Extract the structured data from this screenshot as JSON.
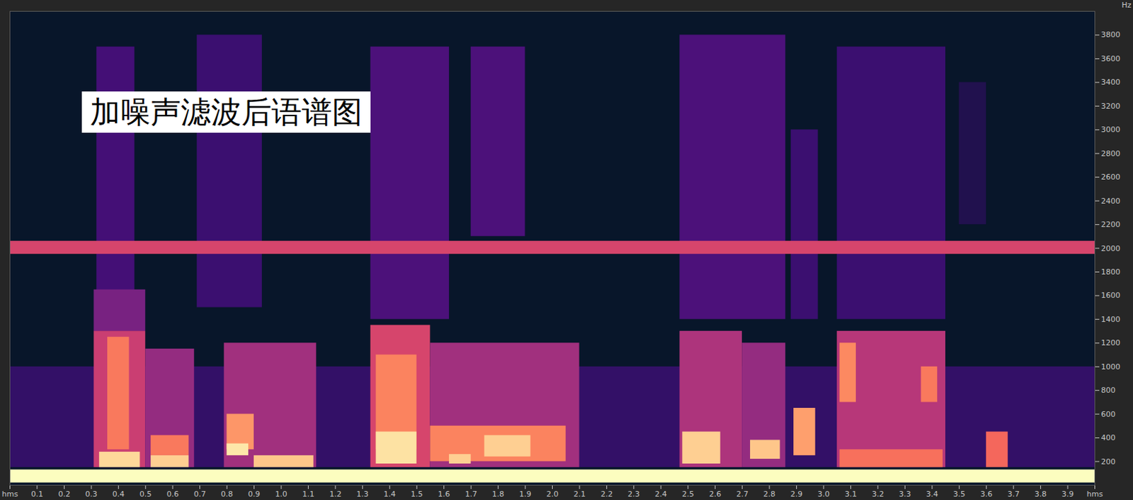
{
  "chart_data": {
    "type": "spectrogram",
    "title": "加噪声滤波后语谱图",
    "y_label": "Hz",
    "xlim": [
      0,
      4.0
    ],
    "xticks": [
      {
        "value": 0,
        "label": "hms"
      },
      0.1,
      0.2,
      0.3,
      0.4,
      0.5,
      0.6,
      0.7,
      0.8,
      0.9,
      {
        "value": 1,
        "label": "1.0"
      },
      1.1,
      1.2,
      1.3,
      1.4,
      1.5,
      1.6,
      1.7,
      1.8,
      1.9,
      {
        "value": 2,
        "label": "2.0"
      },
      2.1,
      2.2,
      2.3,
      2.4,
      2.5,
      2.6,
      2.7,
      2.8,
      2.9,
      {
        "value": 3,
        "label": "3.0"
      },
      3.1,
      3.2,
      3.3,
      3.4,
      3.5,
      3.6,
      3.7,
      3.8,
      3.9,
      {
        "value": 4.0,
        "label": "hms"
      }
    ],
    "ylim": [
      0,
      4000
    ],
    "yticks": [
      200,
      400,
      600,
      800,
      1000,
      1200,
      1400,
      1600,
      1800,
      2000,
      2200,
      2400,
      2600,
      2800,
      3000,
      3200,
      3400,
      3600,
      3800
    ],
    "value_range": [
      0,
      100
    ],
    "cells": [
      {
        "t0": 0,
        "t1": 4.0,
        "f0": 150,
        "f1": 1000,
        "value": 18
      },
      {
        "t0": 0.32,
        "t1": 0.46,
        "f0": 1400,
        "f1": 3700,
        "value": 22
      },
      {
        "t0": 0.69,
        "t1": 0.93,
        "f0": 1500,
        "f1": 3800,
        "value": 20
      },
      {
        "t0": 1.33,
        "t1": 1.62,
        "f0": 1400,
        "f1": 3700,
        "value": 24
      },
      {
        "t0": 1.7,
        "t1": 1.9,
        "f0": 2100,
        "f1": 3700,
        "value": 24
      },
      {
        "t0": 2.47,
        "t1": 2.86,
        "f0": 1400,
        "f1": 3800,
        "value": 24
      },
      {
        "t0": 2.88,
        "t1": 2.98,
        "f0": 1400,
        "f1": 3000,
        "value": 20
      },
      {
        "t0": 3.05,
        "t1": 3.45,
        "f0": 1400,
        "f1": 3700,
        "value": 20
      },
      {
        "t0": 3.5,
        "t1": 3.6,
        "f0": 2200,
        "f1": 3400,
        "value": 14
      },
      {
        "t0": 0.31,
        "t1": 0.5,
        "f0": 150,
        "f1": 1300,
        "value": 55
      },
      {
        "t0": 0.31,
        "t1": 0.5,
        "f0": 1300,
        "f1": 1650,
        "value": 35
      },
      {
        "t0": 0.36,
        "t1": 0.44,
        "f0": 300,
        "f1": 1250,
        "value": 72
      },
      {
        "t0": 0.33,
        "t1": 0.48,
        "f0": 150,
        "f1": 280,
        "value": 92
      },
      {
        "t0": 0.5,
        "t1": 0.68,
        "f0": 150,
        "f1": 1150,
        "value": 42
      },
      {
        "t0": 0.52,
        "t1": 0.66,
        "f0": 250,
        "f1": 420,
        "value": 72
      },
      {
        "t0": 0.52,
        "t1": 0.66,
        "f0": 150,
        "f1": 250,
        "value": 90
      },
      {
        "t0": 0.79,
        "t1": 1.13,
        "f0": 150,
        "f1": 1200,
        "value": 45
      },
      {
        "t0": 0.8,
        "t1": 0.9,
        "f0": 300,
        "f1": 600,
        "value": 78
      },
      {
        "t0": 0.8,
        "t1": 0.88,
        "f0": 250,
        "f1": 350,
        "value": 95
      },
      {
        "t0": 0.9,
        "t1": 1.12,
        "f0": 150,
        "f1": 250,
        "value": 88
      },
      {
        "t0": 1.33,
        "t1": 1.55,
        "f0": 150,
        "f1": 1350,
        "value": 58
      },
      {
        "t0": 1.35,
        "t1": 1.5,
        "f0": 300,
        "f1": 1100,
        "value": 74
      },
      {
        "t0": 1.35,
        "t1": 1.5,
        "f0": 180,
        "f1": 450,
        "value": 94
      },
      {
        "t0": 1.55,
        "t1": 2.1,
        "f0": 150,
        "f1": 1200,
        "value": 45
      },
      {
        "t0": 1.55,
        "t1": 2.05,
        "f0": 200,
        "f1": 500,
        "value": 74
      },
      {
        "t0": 1.62,
        "t1": 1.7,
        "f0": 180,
        "f1": 260,
        "value": 90
      },
      {
        "t0": 1.75,
        "t1": 1.92,
        "f0": 240,
        "f1": 420,
        "value": 90
      },
      {
        "t0": 2.47,
        "t1": 2.7,
        "f0": 150,
        "f1": 1300,
        "value": 48
      },
      {
        "t0": 2.48,
        "t1": 2.62,
        "f0": 180,
        "f1": 450,
        "value": 90
      },
      {
        "t0": 2.7,
        "t1": 2.86,
        "f0": 150,
        "f1": 1200,
        "value": 42
      },
      {
        "t0": 2.73,
        "t1": 2.84,
        "f0": 220,
        "f1": 380,
        "value": 88
      },
      {
        "t0": 2.89,
        "t1": 2.97,
        "f0": 250,
        "f1": 650,
        "value": 80
      },
      {
        "t0": 3.05,
        "t1": 3.45,
        "f0": 150,
        "f1": 1300,
        "value": 50
      },
      {
        "t0": 3.06,
        "t1": 3.12,
        "f0": 700,
        "f1": 1200,
        "value": 75
      },
      {
        "t0": 3.36,
        "t1": 3.42,
        "f0": 700,
        "f1": 1000,
        "value": 72
      },
      {
        "t0": 3.06,
        "t1": 3.44,
        "f0": 150,
        "f1": 300,
        "value": 70
      },
      {
        "t0": 3.6,
        "t1": 3.68,
        "f0": 150,
        "f1": 450,
        "value": 68
      },
      {
        "t0": 0,
        "t1": 4.0,
        "f0": 1950,
        "f1": 2060,
        "value": 58
      },
      {
        "t0": 0,
        "t1": 4.0,
        "f0": 20,
        "f1": 130,
        "value": 100
      }
    ]
  }
}
